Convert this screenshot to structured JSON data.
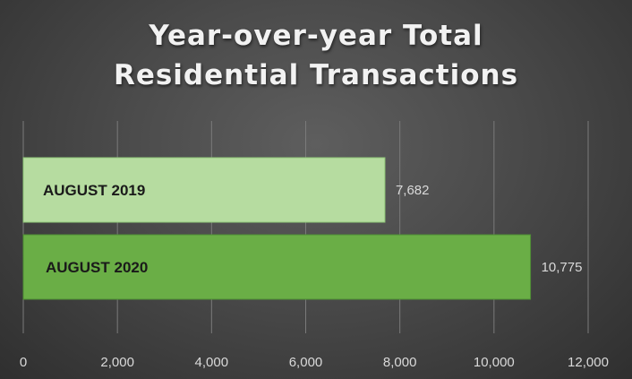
{
  "chart_data": {
    "type": "bar",
    "orientation": "horizontal",
    "title": [
      "Year-over-year Total",
      "Residential Transactions"
    ],
    "categories": [
      "AUGUST 2019",
      "AUGUST 2020"
    ],
    "values": [
      7682,
      10775
    ],
    "value_labels": [
      "7,682",
      "10,775"
    ],
    "xlim": [
      0,
      12000
    ],
    "x_ticks": [
      0,
      2000,
      4000,
      6000,
      8000,
      10000,
      12000
    ],
    "x_tick_labels": [
      "0",
      "2,000",
      "4,000",
      "6,000",
      "8,000",
      "10,000",
      "12,000"
    ],
    "grid": true,
    "legend": "none",
    "colors": {
      "bar_2019": "#b6dca0",
      "bar_2019_edge": "#8fc777",
      "bar_2020": "#6aae46",
      "bar_2020_edge": "#4f8f34",
      "category_text": "#1a1a1a",
      "value_text": "#d9d9d9",
      "tick_text": "#d9d9d9",
      "gridline": "#7a7a7a"
    }
  }
}
